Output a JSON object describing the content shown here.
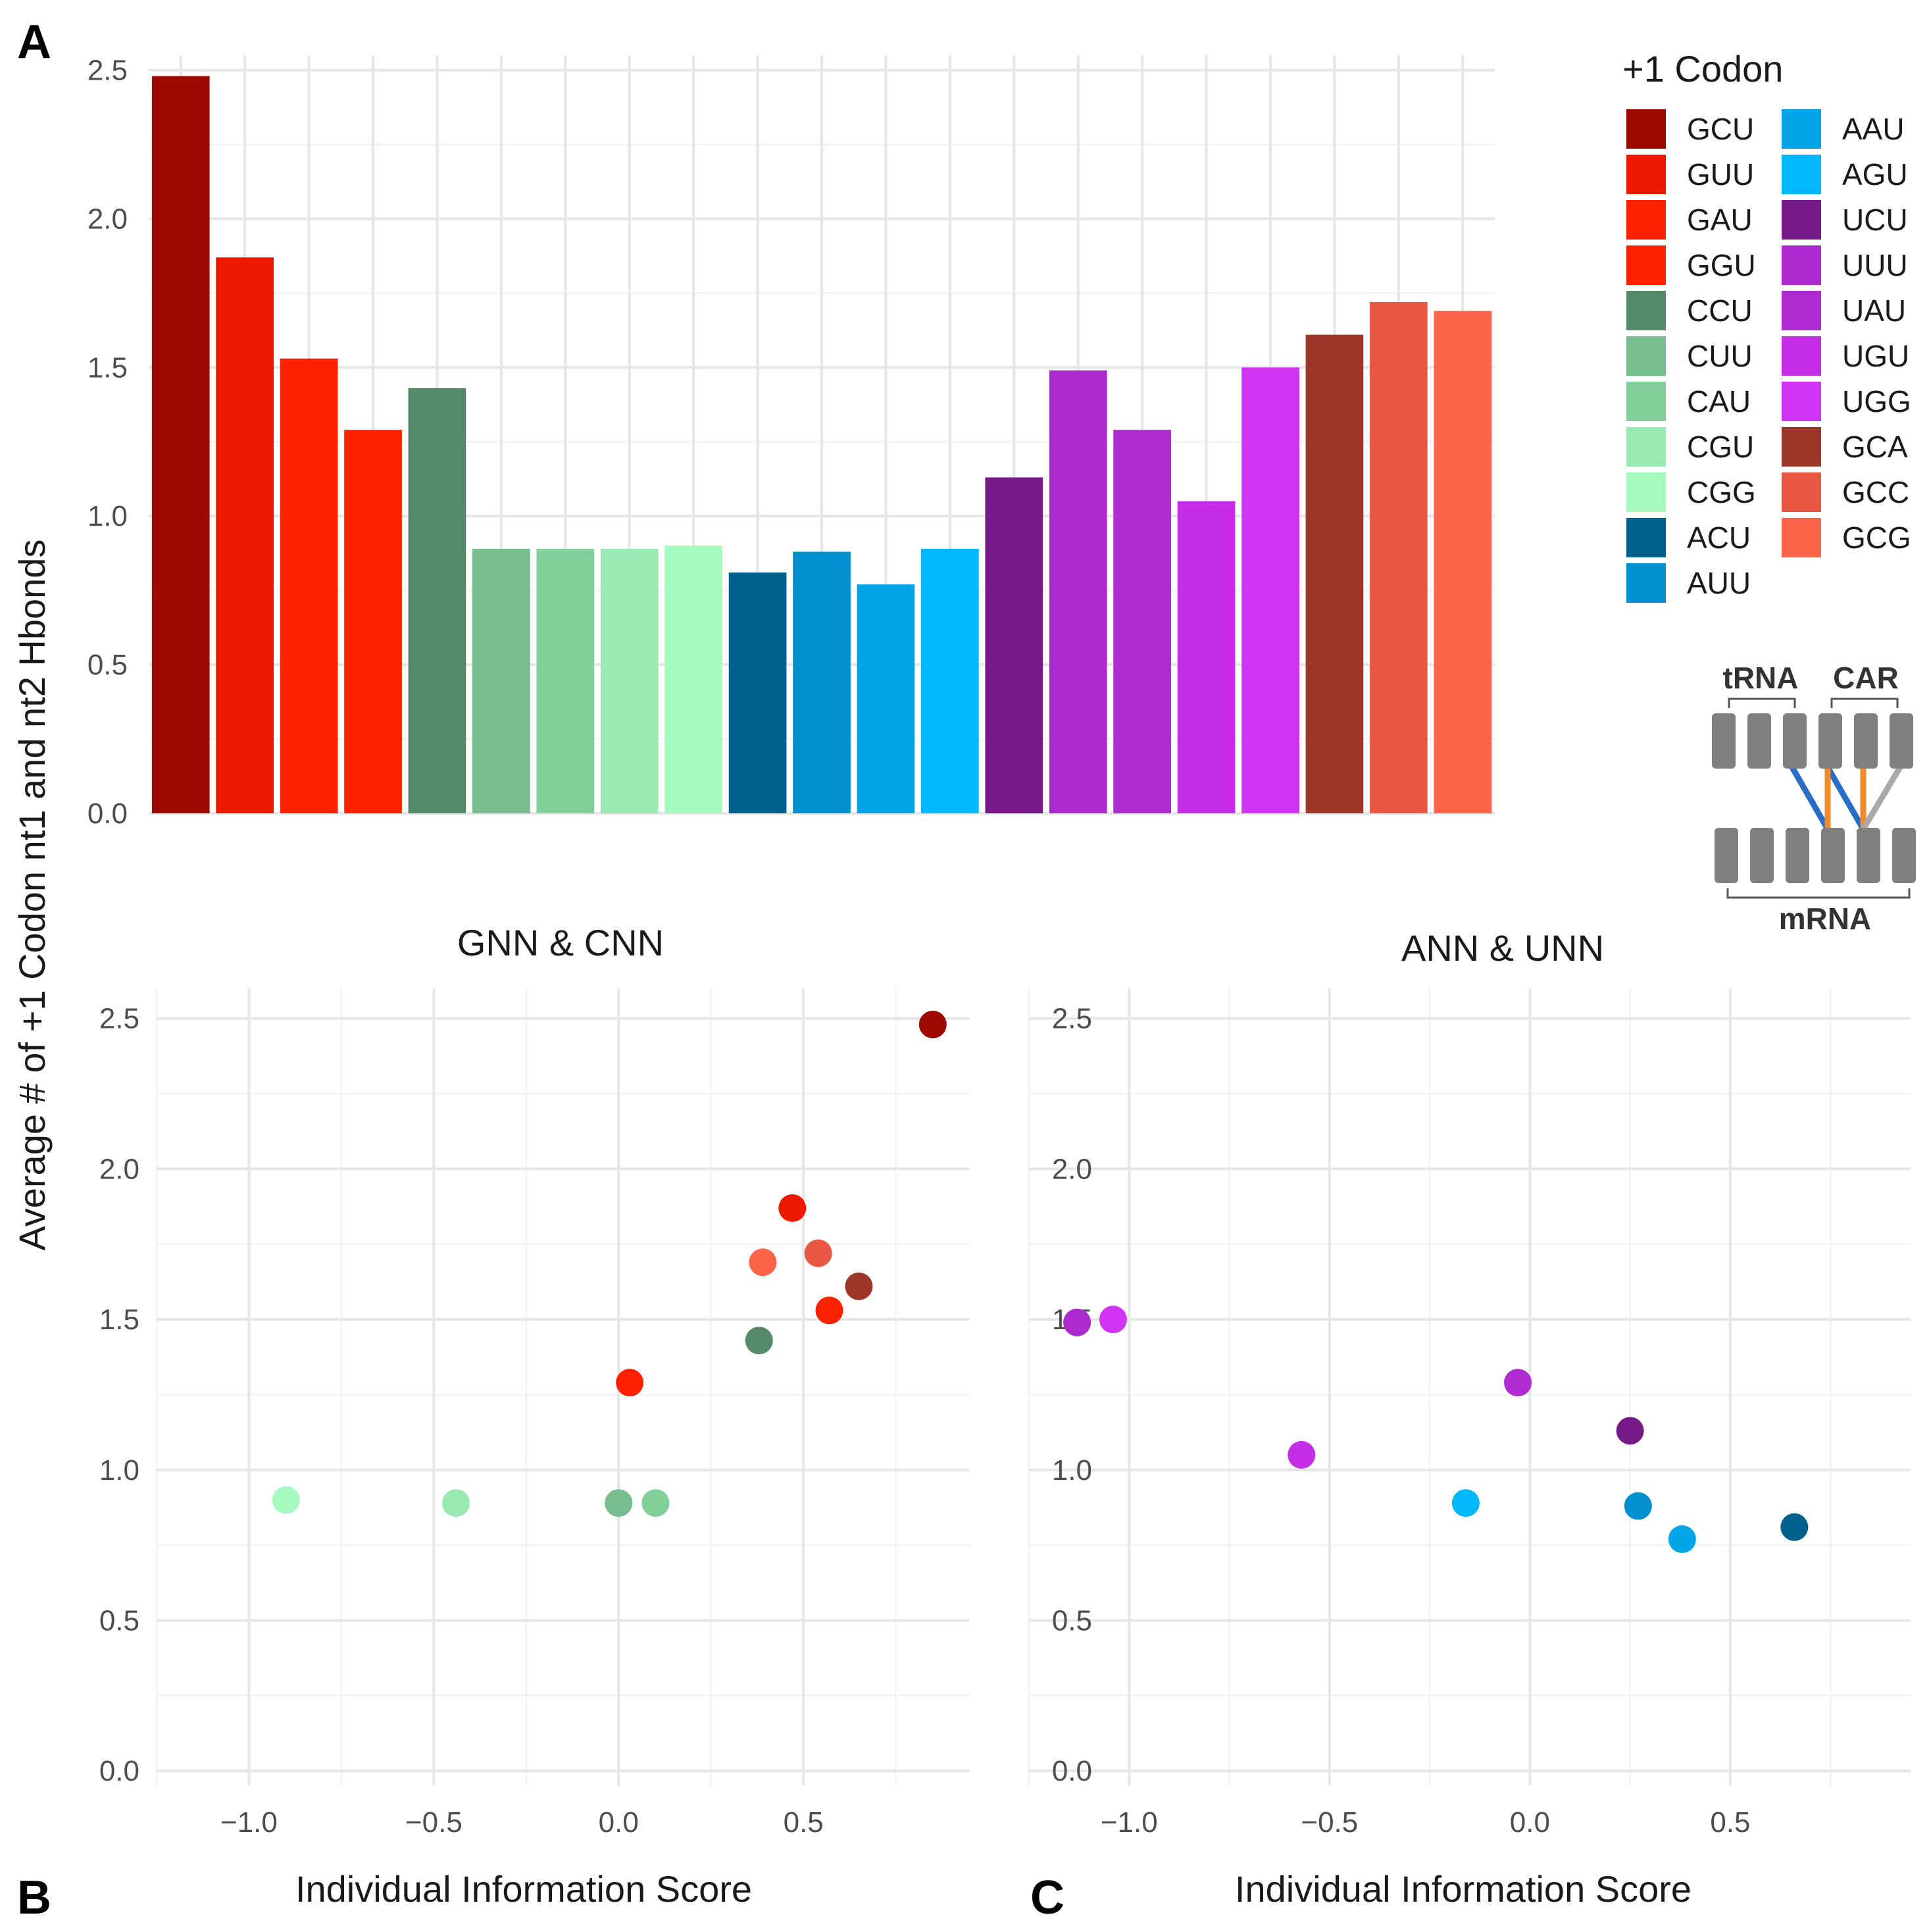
{
  "panels": {
    "a": "A",
    "b": "B",
    "c": "C"
  },
  "y_axis_label": "Average # of +1 Codon nt1 and nt2 Hbonds",
  "legend": {
    "title": "+1 Codon",
    "items": [
      {
        "codon": "GCU",
        "color": "#9E0A00"
      },
      {
        "codon": "GUU",
        "color": "#EE1A00"
      },
      {
        "codon": "GAU",
        "color": "#FC2200"
      },
      {
        "codon": "GGU",
        "color": "#FF2200"
      },
      {
        "codon": "CCU",
        "color": "#548A6A"
      },
      {
        "codon": "CUU",
        "color": "#77BD8D"
      },
      {
        "codon": "CAU",
        "color": "#82CF9A"
      },
      {
        "codon": "CGU",
        "color": "#99EAB2"
      },
      {
        "codon": "CGG",
        "color": "#A6FABF"
      },
      {
        "codon": "ACU",
        "color": "#00628C"
      },
      {
        "codon": "AUU",
        "color": "#0090CF"
      },
      {
        "codon": "AAU",
        "color": "#00A6E8"
      },
      {
        "codon": "AGU",
        "color": "#00B8FA"
      },
      {
        "codon": "UCU",
        "color": "#761A8A"
      },
      {
        "codon": "UUU",
        "color": "#AC28CF"
      },
      {
        "codon": "UAU",
        "color": "#AF2AD1"
      },
      {
        "codon": "UGU",
        "color": "#C52EE6"
      },
      {
        "codon": "UGG",
        "color": "#D133F2"
      },
      {
        "codon": "GCA",
        "color": "#9C372A"
      },
      {
        "codon": "GCC",
        "color": "#E85842"
      },
      {
        "codon": "GCG",
        "color": "#FC644A"
      }
    ]
  },
  "inset": {
    "trna_label": "tRNA",
    "car_label": "CAR",
    "mrna_label": "mRNA",
    "colors": {
      "box": "#7f7f7f",
      "blue": "#2A6DC7",
      "orange": "#F08A2A",
      "gray": "#A9A9A9"
    }
  },
  "chart_data": [
    {
      "panel": "A",
      "type": "bar",
      "categories": [
        "GCU",
        "GUU",
        "GAU",
        "GGU",
        "CCU",
        "CUU",
        "CAU",
        "CGU",
        "CGG",
        "ACU",
        "AUU",
        "AAU",
        "AGU",
        "UCU",
        "UUU",
        "UAU",
        "UGU",
        "UGG",
        "GCA",
        "GCC",
        "GCG"
      ],
      "values": [
        2.48,
        1.87,
        1.53,
        1.29,
        1.43,
        0.89,
        0.89,
        0.89,
        0.9,
        0.81,
        0.88,
        0.77,
        0.89,
        1.13,
        1.49,
        1.29,
        1.05,
        1.5,
        1.61,
        1.72,
        1.69
      ],
      "ylim": [
        0,
        2.55
      ],
      "yticks": [
        "0.0",
        "0.5",
        "1.0",
        "1.5",
        "2.0",
        "2.5"
      ],
      "xlabel": "",
      "ylabel": "Average # of +1 Codon nt1 and nt2 Hbonds"
    },
    {
      "panel": "B",
      "type": "scatter",
      "title": "GNN & CNN",
      "xlabel": "Individual Information Score",
      "xlim": [
        -1.25,
        0.95
      ],
      "ylim": [
        -0.05,
        2.6
      ],
      "xticks": [
        "-1.0",
        "-0.5",
        "0.0",
        "0.5"
      ],
      "yticks": [
        "0.0",
        "0.5",
        "1.0",
        "1.5",
        "2.0",
        "2.5"
      ],
      "points": [
        {
          "codon": "GCU",
          "x": 0.85,
          "y": 2.48
        },
        {
          "codon": "GUU",
          "x": 0.47,
          "y": 1.87
        },
        {
          "codon": "GCC",
          "x": 0.54,
          "y": 1.72
        },
        {
          "codon": "GCG",
          "x": 0.39,
          "y": 1.69
        },
        {
          "codon": "GCA",
          "x": 0.65,
          "y": 1.61
        },
        {
          "codon": "GAU",
          "x": 0.57,
          "y": 1.53
        },
        {
          "codon": "CCU",
          "x": 0.38,
          "y": 1.43
        },
        {
          "codon": "GGU",
          "x": 0.03,
          "y": 1.29
        },
        {
          "codon": "CGG",
          "x": -0.9,
          "y": 0.9
        },
        {
          "codon": "CGU",
          "x": -0.44,
          "y": 0.89
        },
        {
          "codon": "CUU",
          "x": 0.0,
          "y": 0.89
        },
        {
          "codon": "CAU",
          "x": 0.1,
          "y": 0.89
        }
      ]
    },
    {
      "panel": "C",
      "type": "scatter",
      "title": "ANN & UNN",
      "xlabel": "Individual Information Score",
      "xlim": [
        -1.25,
        0.95
      ],
      "ylim": [
        -0.05,
        2.6
      ],
      "xticks": [
        "-1.0",
        "-0.5",
        "0.0",
        "0.5"
      ],
      "yticks": [
        "0.0",
        "0.5",
        "1.0",
        "1.5",
        "2.0",
        "2.5"
      ],
      "points": [
        {
          "codon": "UUU",
          "x": -1.13,
          "y": 1.49
        },
        {
          "codon": "UGG",
          "x": -1.04,
          "y": 1.5
        },
        {
          "codon": "UAU",
          "x": -0.03,
          "y": 1.29
        },
        {
          "codon": "UCU",
          "x": 0.25,
          "y": 1.13
        },
        {
          "codon": "UGU",
          "x": -0.57,
          "y": 1.05
        },
        {
          "codon": "AGU",
          "x": -0.16,
          "y": 0.89
        },
        {
          "codon": "AUU",
          "x": 0.27,
          "y": 0.88
        },
        {
          "codon": "AAU",
          "x": 0.38,
          "y": 0.77
        },
        {
          "codon": "ACU",
          "x": 0.66,
          "y": 0.81
        }
      ]
    }
  ]
}
